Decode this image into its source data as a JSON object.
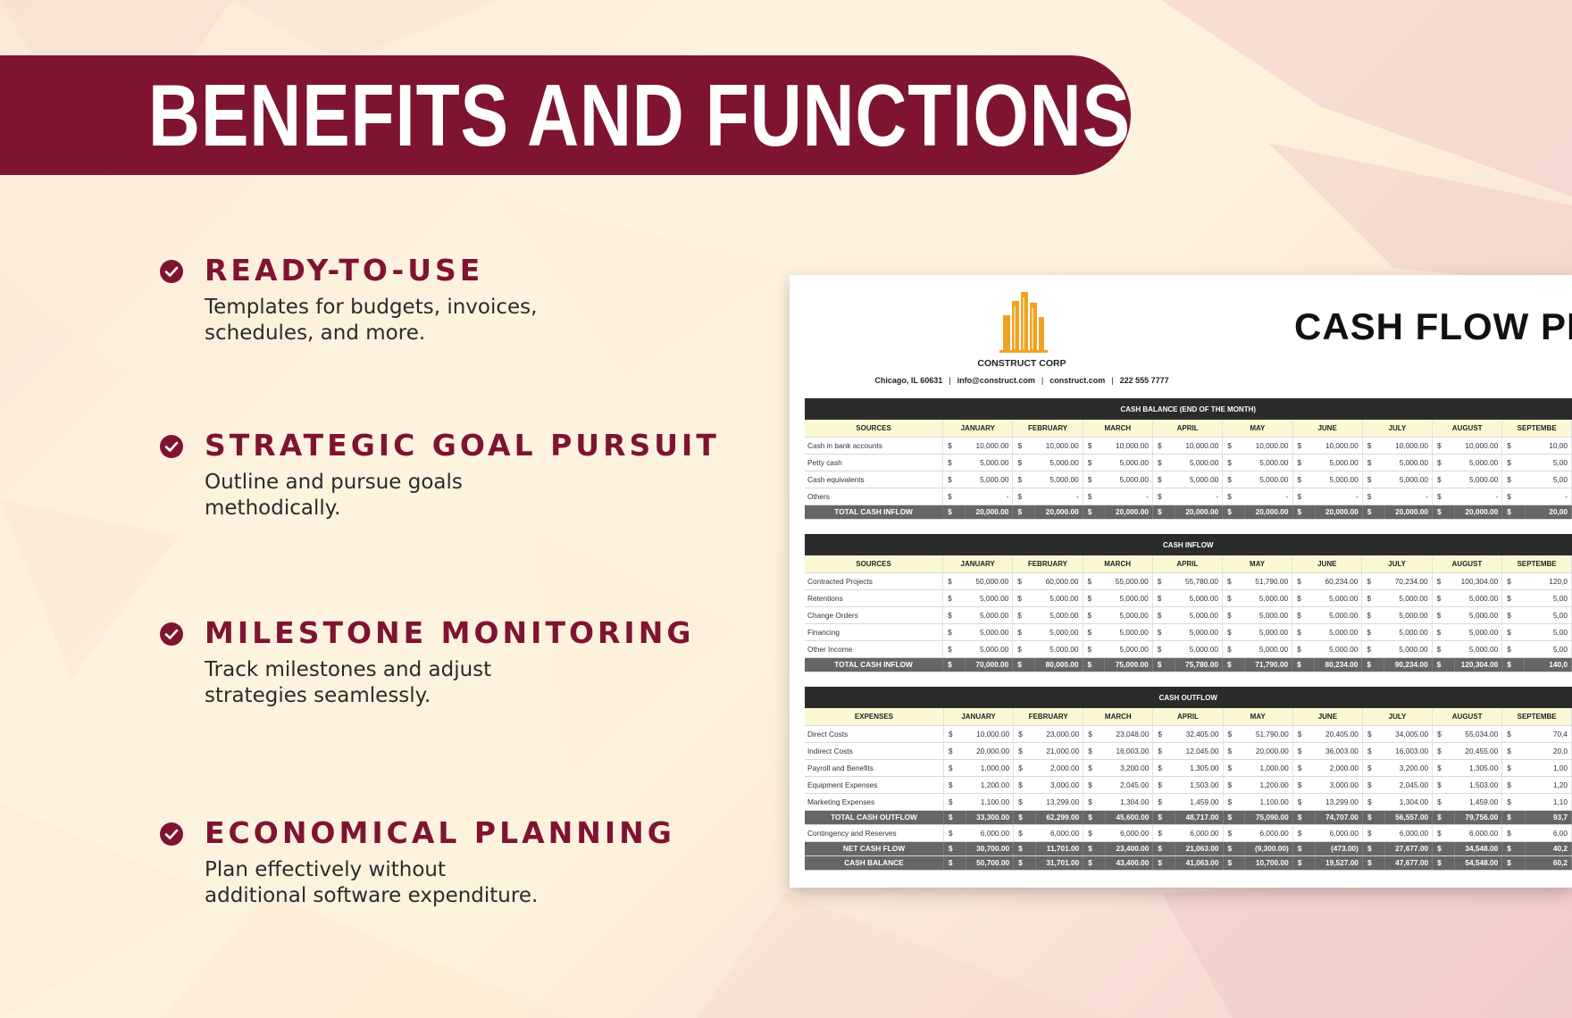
{
  "banner": {
    "title": "BENEFITS AND FUNCTIONS"
  },
  "colors": {
    "accent": "#7f1431",
    "header_row": "#fcf8d4",
    "section_bar": "#2b2b2b",
    "total_row": "#666666",
    "logo": "#f0a322"
  },
  "benefits": [
    {
      "title": "READY-TO-USE",
      "desc_lines": [
        "Templates for budgets, invoices,",
        "schedules, and more."
      ],
      "icon": "check-circle-icon"
    },
    {
      "title": "STRATEGIC GOAL PURSUIT",
      "desc_lines": [
        "Outline and pursue goals",
        "methodically."
      ],
      "icon": "check-circle-icon"
    },
    {
      "title": "MILESTONE MONITORING",
      "desc_lines": [
        "Track milestones and adjust",
        "strategies seamlessly."
      ],
      "icon": "check-circle-icon"
    },
    {
      "title": "ECONOMICAL PLANNING",
      "desc_lines": [
        "Plan effectively without",
        "additional software expenditure."
      ],
      "icon": "check-circle-icon"
    }
  ],
  "document": {
    "company": "CONSTRUCT CORP",
    "contact": [
      "Chicago, IL 60631",
      "info@construct.com",
      "construct.com",
      "222 555 7777"
    ],
    "contact_separator": "|",
    "title": "CASH FLOW PRO",
    "logo_icon": "building-logo-icon",
    "months": [
      "JANUARY",
      "FEBRUARY",
      "MARCH",
      "APRIL",
      "MAY",
      "JUNE",
      "JULY",
      "AUGUST",
      "SEPTEMBE"
    ],
    "sections": [
      {
        "title": "CASH BALANCE (END OF THE MONTH)",
        "label_header": "SOURCES",
        "rows": [
          {
            "label": "Cash in bank accounts",
            "values": [
              "10,000.00",
              "10,000.00",
              "10,000.00",
              "10,000.00",
              "10,000.00",
              "10,000.00",
              "10,000.00",
              "10,000.00",
              "10,00"
            ]
          },
          {
            "label": "Petty cash",
            "values": [
              "5,000.00",
              "5,000.00",
              "5,000.00",
              "5,000.00",
              "5,000.00",
              "5,000.00",
              "5,000.00",
              "5,000.00",
              "5,00"
            ]
          },
          {
            "label": "Cash equivalents",
            "values": [
              "5,000.00",
              "5,000.00",
              "5,000.00",
              "5,000.00",
              "5,000.00",
              "5,000.00",
              "5,000.00",
              "5,000.00",
              "5,00"
            ]
          },
          {
            "label": "Others",
            "values": [
              "-",
              "-",
              "-",
              "-",
              "-",
              "-",
              "-",
              "-",
              "-"
            ]
          },
          {
            "label": "TOTAL CASH INFLOW",
            "total": true,
            "values": [
              "20,000.00",
              "20,000.00",
              "20,000.00",
              "20,000.00",
              "20,000.00",
              "20,000.00",
              "20,000.00",
              "20,000.00",
              "20,00"
            ]
          }
        ]
      },
      {
        "title": "CASH INFLOW",
        "label_header": "SOURCES",
        "rows": [
          {
            "label": "Contracted Projects",
            "values": [
              "50,000.00",
              "60,000.00",
              "55,000.00",
              "55,780.00",
              "51,790.00",
              "60,234.00",
              "70,234.00",
              "100,304.00",
              "120,0"
            ]
          },
          {
            "label": "Retentions",
            "values": [
              "5,000.00",
              "5,000.00",
              "5,000.00",
              "5,000.00",
              "5,000.00",
              "5,000.00",
              "5,000.00",
              "5,000.00",
              "5,00"
            ]
          },
          {
            "label": "Change Orders",
            "values": [
              "5,000.00",
              "5,000.00",
              "5,000.00",
              "5,000.00",
              "5,000.00",
              "5,000.00",
              "5,000.00",
              "5,000.00",
              "5,00"
            ]
          },
          {
            "label": "Financing",
            "values": [
              "5,000.00",
              "5,000.00",
              "5,000.00",
              "5,000.00",
              "5,000.00",
              "5,000.00",
              "5,000.00",
              "5,000.00",
              "5,00"
            ]
          },
          {
            "label": "Other Income",
            "values": [
              "5,000.00",
              "5,000.00",
              "5,000.00",
              "5,000.00",
              "5,000.00",
              "5,000.00",
              "5,000.00",
              "5,000.00",
              "5,00"
            ]
          },
          {
            "label": "TOTAL CASH INFLOW",
            "total": true,
            "values": [
              "70,000.00",
              "80,000.00",
              "75,000.00",
              "75,780.00",
              "71,790.00",
              "80,234.00",
              "90,234.00",
              "120,304.00",
              "140,0"
            ]
          }
        ]
      },
      {
        "title": "CASH OUTFLOW",
        "label_header": "EXPENSES",
        "rows": [
          {
            "label": "Direct Costs",
            "values": [
              "10,000.00",
              "23,000.00",
              "23,048.00",
              "32,405.00",
              "51,790.00",
              "20,405.00",
              "34,005.00",
              "55,034.00",
              "70,4"
            ]
          },
          {
            "label": "Indirect Costs",
            "values": [
              "20,000.00",
              "21,000.00",
              "16,003.00",
              "12,045.00",
              "20,000.00",
              "36,003.00",
              "16,003.00",
              "20,455.00",
              "20,0"
            ]
          },
          {
            "label": "Payroll and Benefits",
            "values": [
              "1,000.00",
              "2,000.00",
              "3,200.00",
              "1,305.00",
              "1,000.00",
              "2,000.00",
              "3,200.00",
              "1,305.00",
              "1,00"
            ]
          },
          {
            "label": "Equipment Expenses",
            "values": [
              "1,200.00",
              "3,000.00",
              "2,045.00",
              "1,503.00",
              "1,200.00",
              "3,000.00",
              "2,045.00",
              "1,503.00",
              "1,20"
            ]
          },
          {
            "label": "Marketing Expenses",
            "values": [
              "1,100.00",
              "13,299.00",
              "1,304.00",
              "1,459.00",
              "1,100.00",
              "13,299.00",
              "1,304.00",
              "1,459.00",
              "1,10"
            ]
          },
          {
            "label": "TOTAL CASH OUTFLOW",
            "total": true,
            "values": [
              "33,300.00",
              "62,299.00",
              "45,600.00",
              "48,717.00",
              "75,090.00",
              "74,707.00",
              "56,557.00",
              "79,756.00",
              "93,7"
            ]
          },
          {
            "label": "Contingency and Reserves",
            "values": [
              "6,000.00",
              "6,000.00",
              "6,000.00",
              "6,000.00",
              "6,000.00",
              "6,000.00",
              "6,000.00",
              "6,000.00",
              "6,00"
            ]
          },
          {
            "label": "NET CASH FLOW",
            "total": true,
            "values": [
              "30,700.00",
              "11,701.00",
              "23,400.00",
              "21,063.00",
              "(9,300.00)",
              "(473.00)",
              "27,677.00",
              "34,548.00",
              "40,2"
            ]
          },
          {
            "label": "CASH BALANCE",
            "total": true,
            "values": [
              "50,700.00",
              "31,701.00",
              "43,400.00",
              "41,063.00",
              "10,700.00",
              "19,527.00",
              "47,677.00",
              "54,548.00",
              "60,2"
            ]
          }
        ]
      }
    ],
    "currency_symbol": "$"
  }
}
